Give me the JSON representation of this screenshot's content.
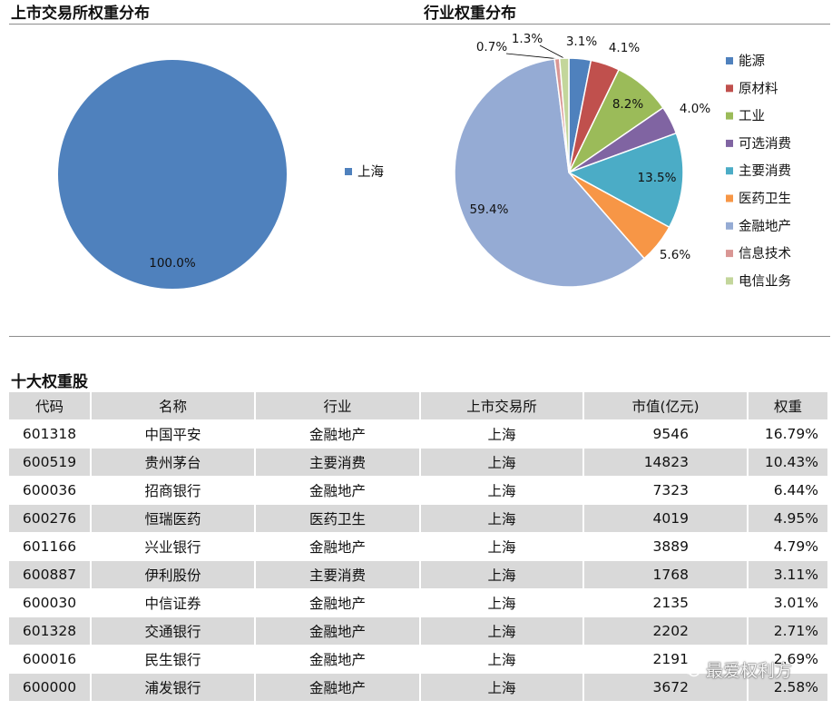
{
  "exchange_section": {
    "title": "上市交易所权重分布"
  },
  "industry_section": {
    "title": "行业权重分布"
  },
  "table_section": {
    "title": "十大权重股"
  },
  "chart_data": [
    {
      "type": "pie",
      "title": "",
      "slices": [
        {
          "label": "上海",
          "value": 100.0,
          "display": "100.0%",
          "color": "#4f81bd"
        }
      ],
      "legend_position": "right"
    },
    {
      "type": "pie",
      "title": "",
      "slices": [
        {
          "label": "能源",
          "value": 3.1,
          "display": "3.1%",
          "color": "#4f81bd"
        },
        {
          "label": "原材料",
          "value": 4.1,
          "display": "4.1%",
          "color": "#c0504d"
        },
        {
          "label": "工业",
          "value": 8.2,
          "display": "8.2%",
          "color": "#9bbb59"
        },
        {
          "label": "可选消费",
          "value": 4.0,
          "display": "4.0%",
          "color": "#8064a2"
        },
        {
          "label": "主要消费",
          "value": 13.5,
          "display": "13.5%",
          "color": "#4bacc6"
        },
        {
          "label": "医药卫生",
          "value": 5.6,
          "display": "5.6%",
          "color": "#f79646"
        },
        {
          "label": "金融地产",
          "value": 59.4,
          "display": "59.4%",
          "color": "#95abd4"
        },
        {
          "label": "信息技术",
          "value": 0.7,
          "display": "0.7%",
          "color": "#d99694"
        },
        {
          "label": "电信业务",
          "value": 1.3,
          "display": "1.3%",
          "color": "#c3d69b"
        }
      ],
      "legend_position": "right"
    }
  ],
  "table": {
    "headers": [
      "代码",
      "名称",
      "行业",
      "上市交易所",
      "市值(亿元)",
      "权重"
    ],
    "rows": [
      [
        "601318",
        "中国平安",
        "金融地产",
        "上海",
        "9546",
        "16.79%"
      ],
      [
        "600519",
        "贵州茅台",
        "主要消费",
        "上海",
        "14823",
        "10.43%"
      ],
      [
        "600036",
        "招商银行",
        "金融地产",
        "上海",
        "7323",
        "6.44%"
      ],
      [
        "600276",
        "恒瑞医药",
        "医药卫生",
        "上海",
        "4019",
        "4.95%"
      ],
      [
        "601166",
        "兴业银行",
        "金融地产",
        "上海",
        "3889",
        "4.79%"
      ],
      [
        "600887",
        "伊利股份",
        "主要消费",
        "上海",
        "1768",
        "3.11%"
      ],
      [
        "600030",
        "中信证券",
        "金融地产",
        "上海",
        "2135",
        "3.01%"
      ],
      [
        "601328",
        "交通银行",
        "金融地产",
        "上海",
        "2202",
        "2.71%"
      ],
      [
        "600016",
        "民生银行",
        "金融地产",
        "上海",
        "2191",
        "2.69%"
      ],
      [
        "600000",
        "浦发银行",
        "金融地产",
        "上海",
        "3672",
        "2.58%"
      ]
    ]
  },
  "watermark": {
    "text": "最爱权利方",
    "icon": "wechat-icon"
  }
}
